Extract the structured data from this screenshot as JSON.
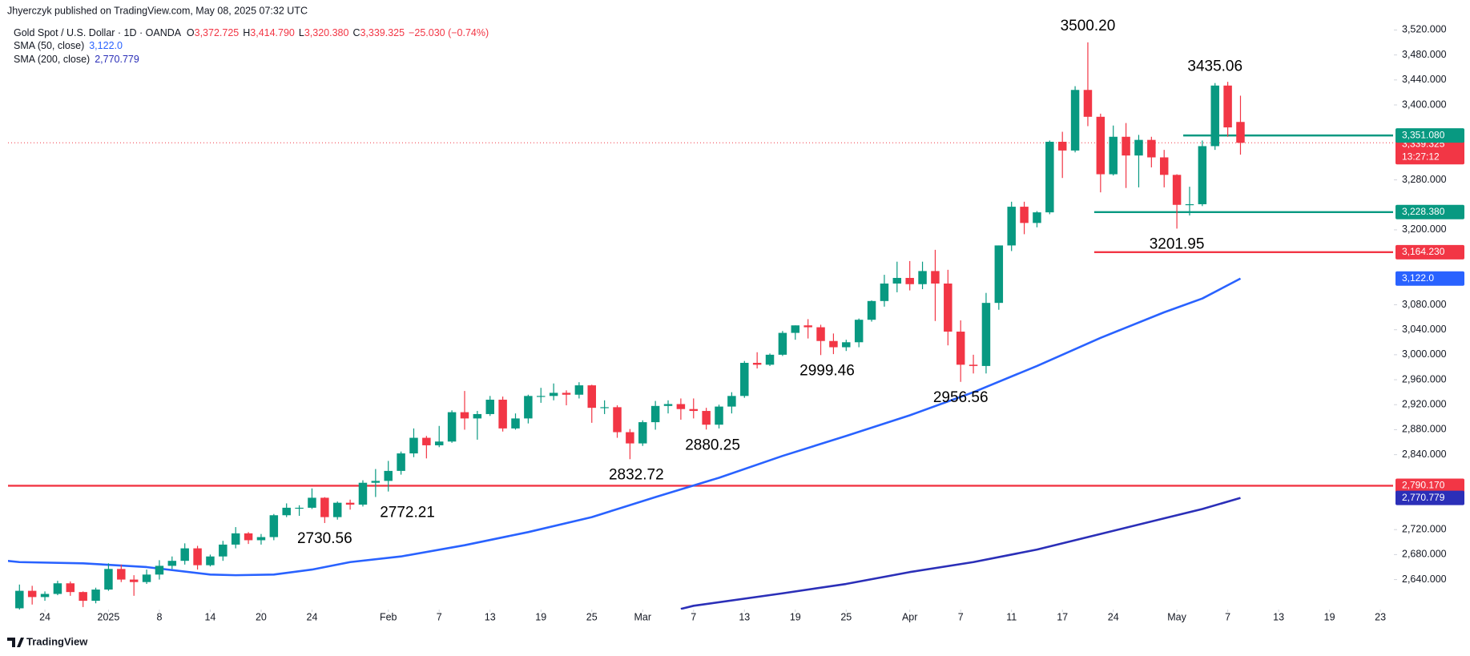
{
  "chart_data": {
    "type": "candlestick",
    "published": "Jhyerczyk published on TradingView.com, May 08, 2025 07:32 UTC",
    "symbol": "Gold Spot / U.S. Dollar · 1D · OANDA",
    "ohlc_legend": [
      {
        "key": "O",
        "text": "3,372.725"
      },
      {
        "key": "H",
        "text": "3,414.790"
      },
      {
        "key": "L",
        "text": "3,320.380"
      },
      {
        "key": "C",
        "text": "3,339.325"
      }
    ],
    "change": "−25.030 (−0.74%)",
    "up_color": "#089981",
    "down_color": "#f23645",
    "x": [
      0,
      1,
      2,
      3,
      4,
      5,
      6,
      7,
      8,
      9,
      10,
      11,
      12,
      13,
      14,
      15,
      16,
      17,
      18,
      19,
      20,
      21,
      22,
      23,
      24,
      25,
      26,
      27,
      28,
      29,
      30,
      31,
      32,
      33,
      34,
      35,
      36,
      37,
      38,
      39,
      40,
      41,
      42,
      43,
      44,
      45,
      46,
      47,
      48,
      49,
      50,
      51,
      52,
      53,
      54,
      55,
      56,
      57,
      58,
      59,
      60,
      61,
      62,
      63,
      64,
      65,
      66,
      67,
      68,
      69,
      70,
      71,
      72,
      73,
      74,
      75,
      76,
      77,
      78,
      79,
      80,
      81,
      82,
      83,
      84,
      85,
      86,
      87,
      88,
      89,
      90,
      91,
      92,
      93,
      94,
      95,
      96
    ],
    "open": [
      2594,
      2622,
      2612,
      2617,
      2634,
      2620,
      2606,
      2624,
      2657,
      2640,
      2636,
      2648,
      2662,
      2670,
      2690,
      2663,
      2677,
      2696,
      2714,
      2703,
      2708,
      2743,
      2755,
      2755,
      2771,
      2740,
      2763,
      2760,
      2795,
      2798,
      2814,
      2842,
      2867,
      2855,
      2861,
      2908,
      2898,
      2905,
      2928,
      2882,
      2898,
      2934,
      2934,
      2939,
      2936,
      2951,
      2915,
      2916,
      2876,
      2858,
      2892,
      2918,
      2921,
      2913,
      2910,
      2888,
      2917,
      2934,
      2987,
      2984,
      3000,
      3035,
      3047,
      3044,
      3022,
      3012,
      3020,
      3056,
      3086,
      3114,
      3123,
      3113,
      3134,
      3114,
      3037,
      2984,
      2982,
      3083,
      3175,
      3237,
      3211,
      3228,
      3341,
      3327,
      3424,
      3381,
      3289,
      3349,
      3319,
      3344,
      3316,
      3288,
      3240,
      3241,
      3334,
      3431,
      3372.725
    ],
    "high": [
      2632,
      2630,
      2621,
      2638,
      2637,
      2621,
      2627,
      2666,
      2664,
      2647,
      2656,
      2671,
      2677,
      2698,
      2694,
      2680,
      2702,
      2724,
      2716,
      2713,
      2745,
      2762,
      2759,
      2786,
      2772,
      2765,
      2768,
      2799,
      2817,
      2830,
      2845,
      2882,
      2870,
      2886,
      2911,
      2942,
      2910,
      2934,
      2933,
      2906,
      2936,
      2947,
      2954,
      2943,
      2956,
      2952,
      2927,
      2919,
      2881,
      2895,
      2926,
      2927,
      2930,
      2930,
      2915,
      2920,
      2940,
      2990,
      3004,
      3002,
      3038,
      3047,
      3057,
      3048,
      3034,
      3024,
      3058,
      3087,
      3128,
      3149,
      3150,
      3149,
      3168,
      3136,
      3055,
      3000,
      3099,
      3175,
      3245,
      3245,
      3230,
      3343,
      3357,
      3430,
      3500.2,
      3386,
      3367,
      3371,
      3352,
      3349,
      3328,
      3289,
      3269,
      3343,
      3435.06,
      3437,
      3414.79
    ],
    "low": [
      2583,
      2600,
      2606,
      2615,
      2614,
      2596,
      2602,
      2622,
      2636,
      2614,
      2633,
      2640,
      2657,
      2664,
      2656,
      2661,
      2670,
      2690,
      2697,
      2696,
      2703,
      2740,
      2742,
      2753,
      2730.56,
      2736,
      2752,
      2757,
      2772.21,
      2781,
      2808,
      2836,
      2834,
      2852,
      2859,
      2880,
      2864,
      2902,
      2877,
      2880,
      2890,
      2923,
      2927,
      2919,
      2930,
      2891,
      2905,
      2867,
      2832.72,
      2854,
      2880,
      2906,
      2896,
      2898,
      2880.25,
      2882,
      2906,
      2931,
      2978,
      2982,
      2998,
      3024,
      3026,
      2999.46,
      3001,
      3006,
      3012,
      3053,
      3077,
      3100,
      3103,
      3105,
      3054,
      3015,
      2956.56,
      2970,
      2970,
      3072,
      3166,
      3193,
      3204,
      3225,
      3283,
      3324,
      3366,
      3260,
      3287,
      3267,
      3268,
      3300,
      3268,
      3201.95,
      3223,
      3238,
      3328,
      3349,
      3320.38
    ],
    "close": [
      2622,
      2612,
      2617,
      2634,
      2620,
      2606,
      2624,
      2657,
      2640,
      2636,
      2648,
      2662,
      2670,
      2690,
      2663,
      2677,
      2696,
      2714,
      2703,
      2708,
      2743,
      2755,
      2755,
      2771,
      2740,
      2763,
      2760,
      2795,
      2798,
      2814,
      2842,
      2867,
      2855,
      2861,
      2908,
      2898,
      2905,
      2928,
      2882,
      2898,
      2934,
      2934,
      2939,
      2936,
      2951,
      2915,
      2916,
      2876,
      2858,
      2892,
      2918,
      2921,
      2913,
      2910,
      2888,
      2917,
      2934,
      2987,
      2984,
      3000,
      3035,
      3047,
      3044,
      3022,
      3012,
      3020,
      3056,
      3086,
      3114,
      3123,
      3113,
      3134,
      3114,
      3037,
      2984,
      2982,
      3083,
      3175,
      3237,
      3211,
      3228,
      3341,
      3327,
      3424,
      3381,
      3289,
      3349,
      3319,
      3344,
      3316,
      3288,
      3240,
      3241,
      3334,
      3431,
      3364,
      3339.325
    ],
    "sma": [
      {
        "name": "SMA (50, close)",
        "last_label": "3,122.0",
        "color": "#2962ff",
        "x": [
          -1,
          0,
          5,
          10,
          15,
          17,
          20,
          23,
          26,
          30,
          35,
          40,
          45,
          50,
          55,
          60,
          65,
          70,
          75,
          80,
          85,
          90,
          93,
          96
        ],
        "values": [
          2670,
          2668,
          2666,
          2660,
          2648,
          2647,
          2648,
          2656,
          2668,
          2677,
          2695,
          2716,
          2740,
          2772,
          2803,
          2838,
          2870,
          2903,
          2940,
          2982,
          3027,
          3068,
          3090,
          3122.0
        ]
      },
      {
        "name": "SMA (200, close)",
        "last_label": "2,770.779",
        "color": "#2b2fb8",
        "x": [
          52,
          53,
          60,
          65,
          70,
          75,
          80,
          85,
          90,
          93,
          96
        ],
        "values": [
          2593,
          2598,
          2618,
          2633,
          2652,
          2668,
          2688,
          2713,
          2738,
          2753,
          2770.779
        ]
      }
    ],
    "levels": [
      {
        "value": 3351.08,
        "label": "3,351.080",
        "color": "#089981",
        "start_x": 91.5
      },
      {
        "value": 3228.38,
        "label": "3,228.380",
        "color": "#089981",
        "start_x": 84.5
      },
      {
        "value": 3164.23,
        "label": "3,164.230",
        "color": "#f23645",
        "start_x": 84.5
      },
      {
        "value": 2790.17,
        "label": "2,790.170",
        "color": "#f23645"
      }
    ],
    "last_price": {
      "value": 3339.325,
      "label": "3,339.325",
      "countdown": "13:27:12",
      "color": "#f23645"
    },
    "annotations": [
      {
        "value": 3500.2,
        "label": "3500.20",
        "x": 84,
        "position": "above"
      },
      {
        "value": 3435.06,
        "label": "3435.06",
        "x": 94,
        "position": "above"
      },
      {
        "value": 3201.95,
        "label": "3201.95",
        "x": 91,
        "position": "below"
      },
      {
        "value": 2956.56,
        "label": "2956.56",
        "x": 74,
        "position": "below"
      },
      {
        "value": 2999.46,
        "label": "2999.46",
        "x": 63.5,
        "position": "below"
      },
      {
        "value": 2880.25,
        "label": "2880.25",
        "x": 54.5,
        "position": "below"
      },
      {
        "value": 2832.72,
        "label": "2832.72",
        "x": 48.5,
        "position": "below"
      },
      {
        "value": 2772.21,
        "label": "2772.21",
        "x": 30.5,
        "position": "below"
      },
      {
        "value": 2730.56,
        "label": "2730.56",
        "x": 24,
        "position": "below"
      }
    ],
    "xlim": [
      -0.9,
      108
    ],
    "ylim": [
      2592,
      3568
    ],
    "xticks": [
      {
        "value": 2,
        "label": "24"
      },
      {
        "value": 7,
        "label": "2025"
      },
      {
        "value": 11,
        "label": "8"
      },
      {
        "value": 15,
        "label": "14"
      },
      {
        "value": 19,
        "label": "20"
      },
      {
        "value": 23,
        "label": "24"
      },
      {
        "value": 29,
        "label": "Feb"
      },
      {
        "value": 33,
        "label": "7"
      },
      {
        "value": 37,
        "label": "13"
      },
      {
        "value": 41,
        "label": "19"
      },
      {
        "value": 45,
        "label": "25"
      },
      {
        "value": 49,
        "label": "Mar"
      },
      {
        "value": 53,
        "label": "7"
      },
      {
        "value": 57,
        "label": "13"
      },
      {
        "value": 61,
        "label": "19"
      },
      {
        "value": 65,
        "label": "25"
      },
      {
        "value": 70,
        "label": "Apr"
      },
      {
        "value": 74,
        "label": "7"
      },
      {
        "value": 78,
        "label": "11"
      },
      {
        "value": 82,
        "label": "17"
      },
      {
        "value": 86,
        "label": "24"
      },
      {
        "value": 91,
        "label": "May"
      },
      {
        "value": 95,
        "label": "7"
      },
      {
        "value": 99,
        "label": "13"
      },
      {
        "value": 103,
        "label": "19"
      },
      {
        "value": 107,
        "label": "23"
      }
    ],
    "yticks": [
      {
        "value": 3520,
        "label": "3,520.000"
      },
      {
        "value": 3480,
        "label": "3,480.000"
      },
      {
        "value": 3440,
        "label": "3,440.000"
      },
      {
        "value": 3400,
        "label": "3,400.000"
      },
      {
        "value": 3280,
        "label": "3,280.000"
      },
      {
        "value": 3200,
        "label": "3,200.000"
      },
      {
        "value": 3080,
        "label": "3,080.000"
      },
      {
        "value": 3040,
        "label": "3,040.000"
      },
      {
        "value": 3000,
        "label": "3,000.000"
      },
      {
        "value": 2960,
        "label": "2,960.000"
      },
      {
        "value": 2920,
        "label": "2,920.000"
      },
      {
        "value": 2880,
        "label": "2,880.000"
      },
      {
        "value": 2840,
        "label": "2,840.000"
      },
      {
        "value": 2720,
        "label": "2,720.000"
      },
      {
        "value": 2680,
        "label": "2,680.000"
      },
      {
        "value": 2640,
        "label": "2,640.000"
      }
    ],
    "grid": false,
    "brand": "TradingView"
  }
}
